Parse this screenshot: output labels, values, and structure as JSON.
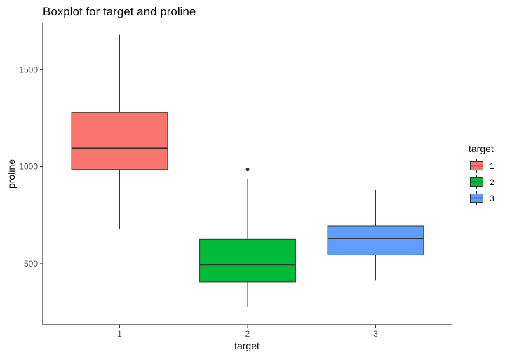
{
  "chart_data": {
    "type": "boxplot",
    "title": "Boxplot for target and proline",
    "xlabel": "target",
    "ylabel": "proline",
    "categories": [
      "1",
      "2",
      "3"
    ],
    "ylim": [
      185,
      1740
    ],
    "yticks": [
      500,
      1000,
      1500
    ],
    "ytick_labels": [
      "500",
      "1000",
      "1500"
    ],
    "grid": false,
    "legend": {
      "title": "target",
      "placement": "right",
      "labels": [
        "1",
        "2",
        "3"
      ]
    },
    "colors": [
      "#F8766D",
      "#00BA38",
      "#619CFF"
    ],
    "boxes": [
      {
        "category": "1",
        "whisker_low": 680,
        "q1": 985,
        "median": 1095,
        "q3": 1280,
        "whisker_high": 1680,
        "outliers": []
      },
      {
        "category": "2",
        "whisker_low": 278,
        "q1": 406,
        "median": 495,
        "q3": 625,
        "whisker_high": 937,
        "outliers": [
          985
        ]
      },
      {
        "category": "3",
        "whisker_low": 415,
        "q1": 545,
        "median": 630,
        "q3": 695,
        "whisker_high": 880,
        "outliers": []
      }
    ]
  }
}
